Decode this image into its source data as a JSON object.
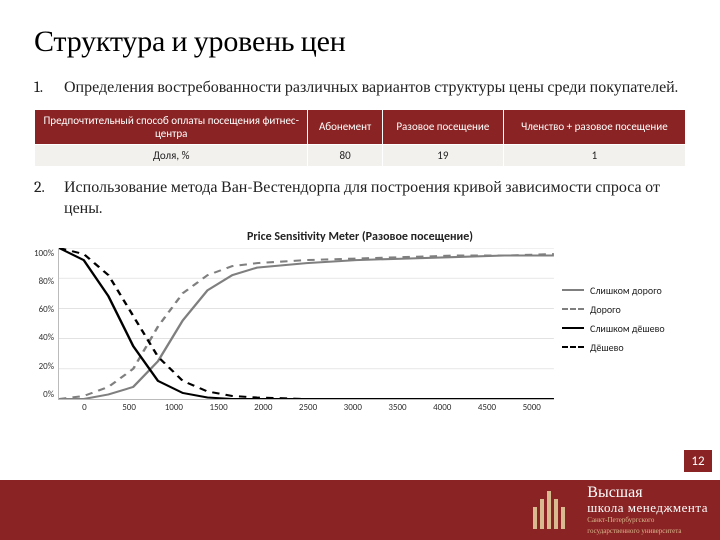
{
  "title": "Структура и уровень цен",
  "items": {
    "n1": "1.",
    "t1": "Определения востребованности различных вариантов структуры цены среди покупателей.",
    "n2": "2.",
    "t2": "Использование метода Ван-Вестендорпа для построения кривой зависимости спроса от цены."
  },
  "table": {
    "h0": "Предпочтительный способ оплаты посещения фитнес-центра",
    "h1": "Абонемент",
    "h2": "Разовое посещение",
    "h3": "Членство + разовое посещение",
    "r0": "Доля, %",
    "v1": "80",
    "v2": "19",
    "v3": "1"
  },
  "chart": {
    "title": "Price Sensitivity Meter (Разовое посещение)",
    "yticks": [
      "100%",
      "80%",
      "60%",
      "40%",
      "20%",
      "0%"
    ],
    "xticks": [
      "0",
      "500",
      "1000",
      "1500",
      "2000",
      "2500",
      "3000",
      "3500",
      "4000",
      "4500",
      "5000"
    ],
    "xmax": 5000,
    "ymax": 100,
    "series": [
      {
        "name": "Слишком дорого",
        "color": "#7f7f7f",
        "dash": "",
        "width": 2,
        "pts": [
          [
            0,
            0
          ],
          [
            250,
            0
          ],
          [
            500,
            3
          ],
          [
            750,
            8
          ],
          [
            1000,
            25
          ],
          [
            1250,
            52
          ],
          [
            1500,
            72
          ],
          [
            1750,
            82
          ],
          [
            2000,
            87
          ],
          [
            2500,
            90
          ],
          [
            3000,
            92
          ],
          [
            3500,
            93
          ],
          [
            4000,
            94
          ],
          [
            4500,
            95
          ],
          [
            5000,
            95
          ]
        ]
      },
      {
        "name": "Дорого",
        "color": "#7f7f7f",
        "dash": "6,5",
        "width": 2,
        "pts": [
          [
            0,
            0
          ],
          [
            250,
            2
          ],
          [
            500,
            8
          ],
          [
            750,
            20
          ],
          [
            1000,
            48
          ],
          [
            1250,
            70
          ],
          [
            1500,
            82
          ],
          [
            1750,
            88
          ],
          [
            2000,
            90
          ],
          [
            2500,
            92
          ],
          [
            3000,
            93
          ],
          [
            3500,
            94
          ],
          [
            4000,
            95
          ],
          [
            4500,
            95
          ],
          [
            5000,
            96
          ]
        ]
      },
      {
        "name": "Слишком дёшево",
        "color": "#000000",
        "dash": "",
        "width": 2,
        "pts": [
          [
            0,
            100
          ],
          [
            250,
            92
          ],
          [
            500,
            68
          ],
          [
            750,
            35
          ],
          [
            1000,
            12
          ],
          [
            1250,
            4
          ],
          [
            1500,
            1
          ],
          [
            1750,
            0
          ],
          [
            2000,
            0
          ],
          [
            2500,
            0
          ],
          [
            3000,
            0
          ],
          [
            3500,
            0
          ],
          [
            4000,
            0
          ],
          [
            4500,
            0
          ],
          [
            5000,
            0
          ]
        ]
      },
      {
        "name": "Дёшево",
        "color": "#000000",
        "dash": "6,5",
        "width": 2,
        "pts": [
          [
            0,
            100
          ],
          [
            250,
            96
          ],
          [
            500,
            82
          ],
          [
            750,
            55
          ],
          [
            1000,
            28
          ],
          [
            1250,
            12
          ],
          [
            1500,
            5
          ],
          [
            1750,
            2
          ],
          [
            2000,
            1
          ],
          [
            2500,
            0
          ],
          [
            3000,
            0
          ],
          [
            3500,
            0
          ],
          [
            4000,
            0
          ],
          [
            4500,
            0
          ],
          [
            5000,
            0
          ]
        ]
      }
    ],
    "legend": [
      "Слишком дорого",
      "Дорого",
      "Слишком дёшево",
      "Дёшево"
    ]
  },
  "footer": {
    "page": "12",
    "logo1": "Высшая",
    "logo2": "школа менеджмента",
    "sub1": "Санкт-Петербургского",
    "sub2": "государственного университета"
  }
}
